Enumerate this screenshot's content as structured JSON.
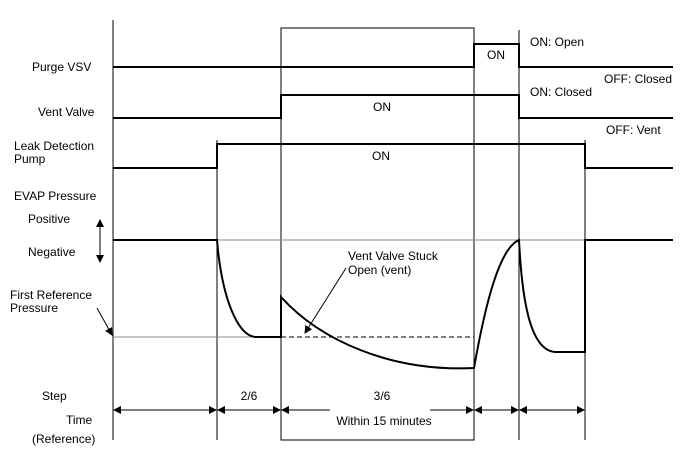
{
  "signals": {
    "purge_vsv": "Purge VSV",
    "vent_valve": "Vent Valve",
    "pump_line1": "Leak Detection",
    "pump_line2": "Pump",
    "evap_pressure": "EVAP Pressure",
    "positive": "Positive",
    "negative": "Negative",
    "first_ref_line1": "First Reference",
    "first_ref_line2": "Pressure"
  },
  "rows": {
    "step": "Step",
    "time": "Time",
    "reference": "(Reference)"
  },
  "states": {
    "purge_on": "ON",
    "purge_on_desc": "ON: Open",
    "purge_off_desc": "OFF: Closed",
    "vent_on_desc": "ON: Closed",
    "vent_on": "ON",
    "vent_off_desc": "OFF: Vent",
    "pump_on": "ON"
  },
  "annotation": {
    "line1": "Vent Valve Stuck",
    "line2": "Open (vent)"
  },
  "steps": {
    "step2": "2/6",
    "step3": "3/6",
    "time3": "Within 15 minutes"
  }
}
